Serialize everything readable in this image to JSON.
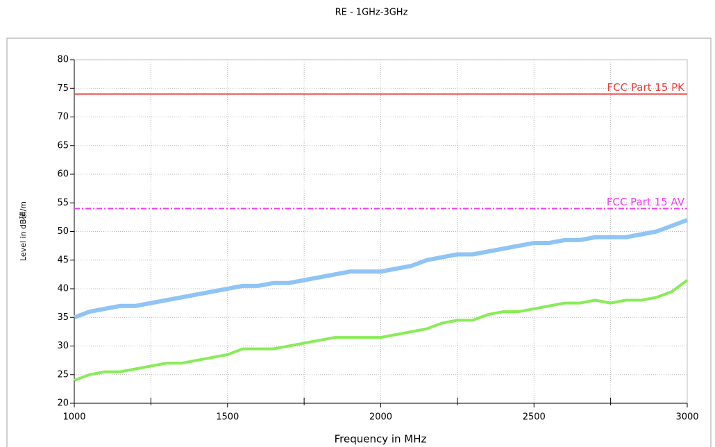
{
  "chart_data": {
    "type": "line",
    "title": "RE - 1GHz-3GHz",
    "xlabel": "Frequency in MHz",
    "ylabel": "Level in dB磺/m",
    "xlim": [
      1000,
      3000
    ],
    "xticks": [
      1000,
      1500,
      2000,
      2500,
      3000
    ],
    "xminorticks": [
      1250,
      1750,
      2250,
      2750
    ],
    "ylim": [
      20,
      80
    ],
    "yticks": [
      20,
      25,
      30,
      35,
      40,
      45,
      50,
      55,
      60,
      65,
      70,
      75,
      80
    ],
    "grid": true,
    "series": [
      {
        "name": "FCC Part 15 PK",
        "color": "#e8413f",
        "dash": "solid",
        "x": [
          1000,
          3000
        ],
        "values": [
          74,
          74
        ]
      },
      {
        "name": "FCC Part 15 AV",
        "color": "#f03cf0",
        "dash": "dashdot",
        "x": [
          1000,
          3000
        ],
        "values": [
          54,
          54
        ]
      },
      {
        "color": "#8fc4f5",
        "dash": "solid",
        "x": [
          1000,
          1050,
          1100,
          1150,
          1200,
          1250,
          1300,
          1350,
          1400,
          1450,
          1500,
          1550,
          1600,
          1650,
          1700,
          1750,
          1800,
          1850,
          1900,
          1950,
          2000,
          2050,
          2100,
          2150,
          2200,
          2250,
          2300,
          2350,
          2400,
          2450,
          2500,
          2550,
          2600,
          2650,
          2700,
          2750,
          2800,
          2850,
          2900,
          2950,
          3000
        ],
        "values": [
          35,
          36,
          36.5,
          37,
          37,
          37.5,
          38,
          38.5,
          39,
          39.5,
          40,
          40.5,
          40.5,
          41,
          41,
          41.5,
          42,
          42.5,
          43,
          43,
          43,
          43.5,
          44,
          45,
          45.5,
          46,
          46,
          46.5,
          47,
          47.5,
          48,
          48,
          48.5,
          48.5,
          49,
          49,
          49,
          49.5,
          50,
          51,
          52
        ]
      },
      {
        "color": "#88ec57",
        "dash": "solid",
        "x": [
          1000,
          1050,
          1100,
          1150,
          1200,
          1250,
          1300,
          1350,
          1400,
          1450,
          1500,
          1550,
          1600,
          1650,
          1700,
          1750,
          1800,
          1850,
          1900,
          1950,
          2000,
          2050,
          2100,
          2150,
          2200,
          2250,
          2300,
          2350,
          2400,
          2450,
          2500,
          2550,
          2600,
          2650,
          2700,
          2750,
          2800,
          2850,
          2900,
          2950,
          3000
        ],
        "values": [
          24,
          25,
          25.5,
          25.5,
          26,
          26.5,
          27,
          27,
          27.5,
          28,
          28.5,
          29.5,
          29.5,
          29.5,
          30,
          30.5,
          31,
          31.5,
          31.5,
          31.5,
          31.5,
          32,
          32.5,
          33,
          34,
          34.5,
          34.5,
          35.5,
          36,
          36,
          36.5,
          37,
          37.5,
          37.5,
          38,
          37.5,
          38,
          38,
          38.5,
          39.5,
          41.5
        ]
      }
    ]
  }
}
